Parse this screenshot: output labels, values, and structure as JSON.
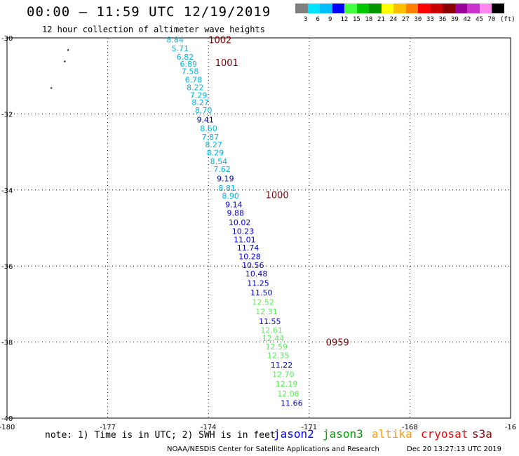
{
  "header": {
    "title": "00:00 — 11:59 UTC 12/19/2019",
    "subtitle": "12 hour collection of altimeter wave heights"
  },
  "legend": {
    "colors": [
      "#808080",
      "#00e5ff",
      "#00bfff",
      "#0000ff",
      "#44ff44",
      "#00c800",
      "#009600",
      "#ffff00",
      "#ffbf00",
      "#ff7f00",
      "#ff0000",
      "#c80000",
      "#8b0000",
      "#990099",
      "#cc33cc",
      "#ff88ee",
      "#000000"
    ],
    "labels": [
      "3",
      "6",
      "9",
      "12",
      "15",
      "18",
      "21",
      "24",
      "27",
      "30",
      "33",
      "36",
      "39",
      "42",
      "45",
      "70",
      "(ft)"
    ]
  },
  "map": {
    "lon_ticks": [
      "-180",
      "-177",
      "-174",
      "-171",
      "-168",
      "-16"
    ],
    "lat_ticks": [
      "-30",
      "-32",
      "-34",
      "-36",
      "-38",
      "-40"
    ],
    "lon_range": [
      -180,
      -165
    ],
    "lat_range": [
      -40,
      -30
    ],
    "pressure_labels": [
      {
        "text": "1002",
        "lon": -174.0,
        "lat": -30.05
      },
      {
        "text": "1001",
        "lon": -173.8,
        "lat": -30.65
      },
      {
        "text": "1000",
        "lon": -172.3,
        "lat": -34.12
      },
      {
        "text": "0959",
        "lon": -170.5,
        "lat": -38.0
      }
    ],
    "land_marks": [
      {
        "lon": -178.2,
        "lat": -30.3
      },
      {
        "lon": -178.3,
        "lat": -30.6
      },
      {
        "lon": -178.7,
        "lat": -31.3
      }
    ],
    "wave_heights": [
      {
        "text": "8.84",
        "sat": "jason3",
        "lon": -175.25,
        "lat": -30.05
      },
      {
        "text": "5.71",
        "sat": "jason3",
        "lon": -175.1,
        "lat": -30.28
      },
      {
        "text": "6.82",
        "sat": "jason3",
        "lon": -174.95,
        "lat": -30.5
      },
      {
        "text": "6.89",
        "sat": "jason3",
        "lon": -174.85,
        "lat": -30.68
      },
      {
        "text": "7.58",
        "sat": "jason3",
        "lon": -174.8,
        "lat": -30.88
      },
      {
        "text": "6.78",
        "sat": "jason3",
        "lon": -174.7,
        "lat": -31.1
      },
      {
        "text": "8.22",
        "sat": "jason3",
        "lon": -174.65,
        "lat": -31.3
      },
      {
        "text": "7.29",
        "sat": "jason3",
        "lon": -174.55,
        "lat": -31.5
      },
      {
        "text": "8.27",
        "sat": "jason3",
        "lon": -174.5,
        "lat": -31.7
      },
      {
        "text": "8.70",
        "sat": "jason3",
        "lon": -174.4,
        "lat": -31.9
      },
      {
        "text": "9.41",
        "sat": "jason2",
        "lon": -174.35,
        "lat": -32.15
      },
      {
        "text": "8.60",
        "sat": "jason3",
        "lon": -174.25,
        "lat": -32.38
      },
      {
        "text": "7.87",
        "sat": "jason3",
        "lon": -174.2,
        "lat": -32.6
      },
      {
        "text": "8.27",
        "sat": "jason3",
        "lon": -174.1,
        "lat": -32.8
      },
      {
        "text": "8.29",
        "sat": "jason3",
        "lon": -174.05,
        "lat": -33.02
      },
      {
        "text": "8.54",
        "sat": "jason3",
        "lon": -173.95,
        "lat": -33.25
      },
      {
        "text": "7.62",
        "sat": "jason3",
        "lon": -173.85,
        "lat": -33.45
      },
      {
        "text": "9.19",
        "sat": "jason2",
        "lon": -173.75,
        "lat": -33.7
      },
      {
        "text": "8.81",
        "sat": "jason3",
        "lon": -173.7,
        "lat": -33.95
      },
      {
        "text": "8.90",
        "sat": "jason3",
        "lon": -173.6,
        "lat": -34.15
      },
      {
        "text": "9.14",
        "sat": "jason2",
        "lon": -173.5,
        "lat": -34.38
      },
      {
        "text": "9.88",
        "sat": "jason2",
        "lon": -173.45,
        "lat": -34.6
      },
      {
        "text": "10.02",
        "sat": "jason2",
        "lon": -173.4,
        "lat": -34.85
      },
      {
        "text": "10.23",
        "sat": "jason2",
        "lon": -173.3,
        "lat": -35.08
      },
      {
        "text": "11.01",
        "sat": "jason2",
        "lon": -173.25,
        "lat": -35.3
      },
      {
        "text": "11.74",
        "sat": "jason2",
        "lon": -173.15,
        "lat": -35.52
      },
      {
        "text": "10.28",
        "sat": "jason2",
        "lon": -173.1,
        "lat": -35.75
      },
      {
        "text": "10.56",
        "sat": "jason2",
        "lon": -173.0,
        "lat": -35.98
      },
      {
        "text": "10.48",
        "sat": "jason2",
        "lon": -172.9,
        "lat": -36.2
      },
      {
        "text": "11.25",
        "sat": "jason2",
        "lon": -172.85,
        "lat": -36.45
      },
      {
        "text": "11.50",
        "sat": "jason2",
        "lon": -172.75,
        "lat": -36.7
      },
      {
        "text": "12.52",
        "sat": "jason2g",
        "lon": -172.7,
        "lat": -36.95
      },
      {
        "text": "12.31",
        "sat": "jason2g",
        "lon": -172.6,
        "lat": -37.2
      },
      {
        "text": "11.55",
        "sat": "jason2",
        "lon": -172.5,
        "lat": -37.45
      },
      {
        "text": "12.61",
        "sat": "jason2g",
        "lon": -172.45,
        "lat": -37.68
      },
      {
        "text": "12.44",
        "sat": "jason2g",
        "lon": -172.4,
        "lat": -37.9
      },
      {
        "text": "12.59",
        "sat": "jason2g",
        "lon": -172.3,
        "lat": -38.12
      },
      {
        "text": "12.35",
        "sat": "jason2g",
        "lon": -172.25,
        "lat": -38.35
      },
      {
        "text": "11.22",
        "sat": "jason2",
        "lon": -172.15,
        "lat": -38.6
      },
      {
        "text": "12.70",
        "sat": "jason2g",
        "lon": -172.1,
        "lat": -38.85
      },
      {
        "text": "12.19",
        "sat": "jason2g",
        "lon": -172.0,
        "lat": -39.1
      },
      {
        "text": "12.08",
        "sat": "jason2g",
        "lon": -171.95,
        "lat": -39.35
      },
      {
        "text": "11.66",
        "sat": "jason2",
        "lon": -171.85,
        "lat": -39.6
      }
    ],
    "value_colors": {
      "jason2": "#0000cc",
      "jason3": "#00b4e0",
      "jason2g": "#55ee55"
    },
    "pressure_color": "#800000"
  },
  "footer": {
    "note": "note: 1) Time is in UTC; 2) SWH is in feet",
    "satellites": [
      {
        "name": "jason2",
        "color": "#0000ff"
      },
      {
        "name": "jason3",
        "color": "#00a000"
      },
      {
        "name": "altika",
        "color": "#ff9900"
      },
      {
        "name": "cryosat",
        "color": "#ff0000"
      },
      {
        "name": "s3a",
        "color": "#990000"
      }
    ],
    "credit": "NOAA/NESDIS Center for Satellite Applications and Research",
    "timestamp": "Dec 20 13:27:13 UTC 2019"
  }
}
